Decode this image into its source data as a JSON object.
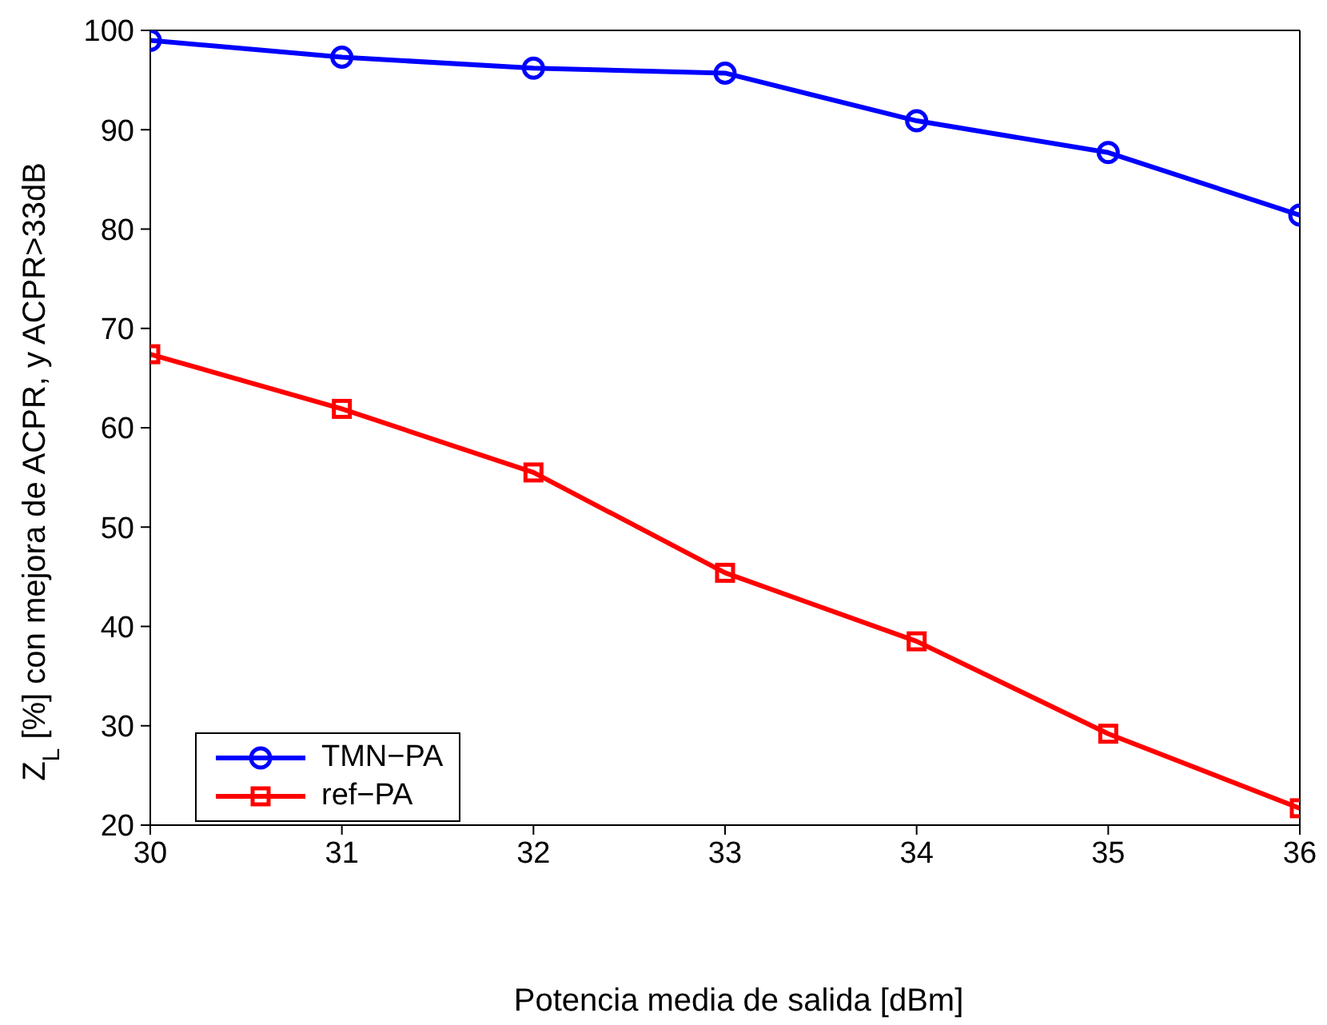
{
  "chart_data": {
    "type": "line",
    "xlabel": "Potencia media de salida [dBm]",
    "ylabel": "Z$_{L}$ [%] con mejora de ACPR, y ACPR>33dB",
    "x": [
      30,
      31,
      32,
      33,
      34,
      35,
      36
    ],
    "series": [
      {
        "name": "TMN−PA",
        "color": "#0000ff",
        "marker": "circle",
        "values": [
          99,
          97.3,
          96.2,
          95.7,
          90.9,
          87.7,
          81.4
        ]
      },
      {
        "name": "ref−PA",
        "color": "#ff0000",
        "marker": "square",
        "values": [
          67.4,
          61.9,
          55.5,
          45.4,
          38.5,
          29.2,
          21.7
        ]
      }
    ],
    "xlim": [
      30,
      36
    ],
    "xticks": [
      30,
      31,
      32,
      33,
      34,
      35,
      36
    ],
    "ylim": [
      20,
      100
    ],
    "yticks": [
      20,
      30,
      40,
      50,
      60,
      70,
      80,
      90,
      100
    ],
    "grid": false,
    "legend": "bottom left",
    "line_style": "solid"
  }
}
